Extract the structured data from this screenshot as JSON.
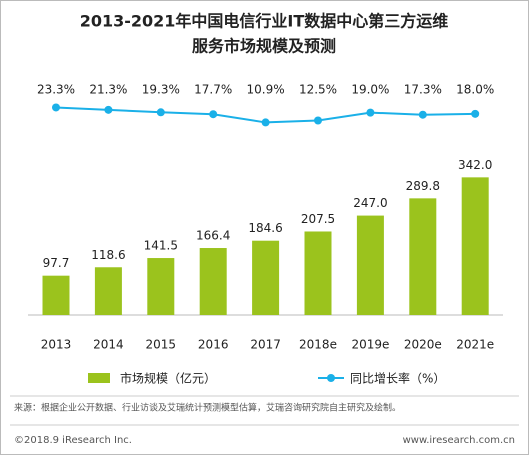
{
  "chart_data": {
    "type": "bar_line",
    "title": "2013-2021年中国电信行业IT数据中心第三方运维",
    "subtitle": "服务市场规模及预测",
    "categories": [
      "2013",
      "2014",
      "2015",
      "2016",
      "2017",
      "2018e",
      "2019e",
      "2020e",
      "2021e"
    ],
    "series": [
      {
        "name": "市场规模（亿元）",
        "type": "bar",
        "color": "#9bc31d",
        "values": [
          97.7,
          118.6,
          141.5,
          166.4,
          184.6,
          207.5,
          247.0,
          289.8,
          342.0
        ],
        "value_labels": [
          "97.7",
          "118.6",
          "141.5",
          "166.4",
          "184.6",
          "207.5",
          "247.0",
          "289.8",
          "342.0"
        ]
      },
      {
        "name": "同比增长率（%）",
        "type": "line",
        "axis": "y2",
        "color": "#1ab0e8",
        "values": [
          23.3,
          21.3,
          19.3,
          17.7,
          10.9,
          12.5,
          19.0,
          17.3,
          18.0
        ],
        "value_labels": [
          "23.3%",
          "21.3%",
          "19.3%",
          "17.7%",
          "10.9%",
          "12.5%",
          "19.0%",
          "17.3%",
          "18.0%"
        ]
      }
    ],
    "ylim": [
      0,
      400
    ],
    "y2lim": [
      -45,
      46
    ]
  },
  "source": "来源：根据企业公开数据、行业访谈及艾瑞统计预测模型估算，艾瑞咨询研究院自主研究及绘制。",
  "footer_left": "©2018.9 iResearch Inc.",
  "footer_right": "www.iresearch.com.cn"
}
